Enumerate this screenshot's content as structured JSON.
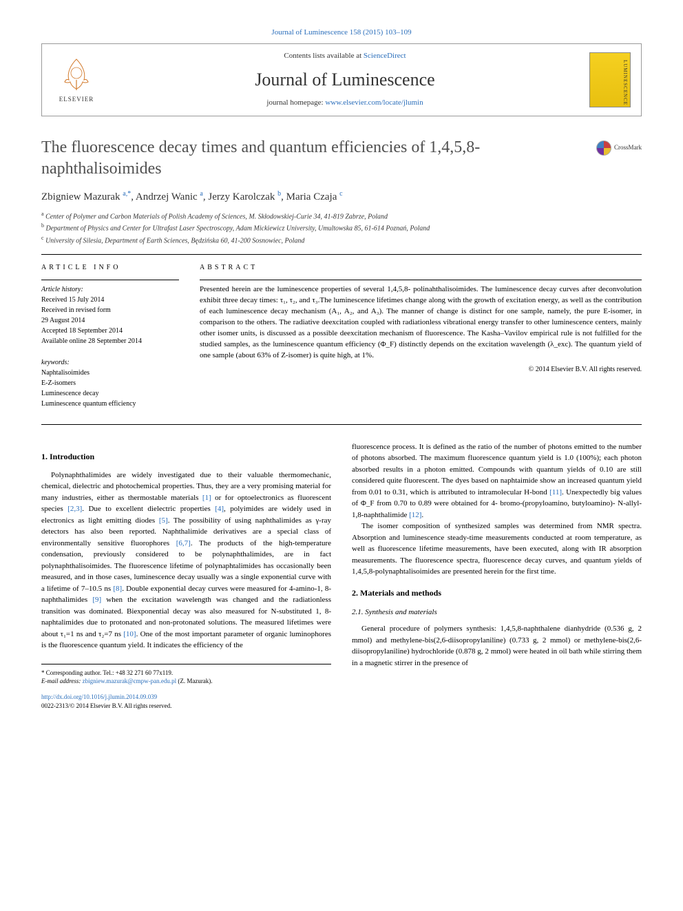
{
  "top_link": "Journal of Luminescence 158 (2015) 103–109",
  "header": {
    "contents_prefix": "Contents lists available at ",
    "contents_link": "ScienceDirect",
    "journal_name": "Journal of Luminescence",
    "homepage_prefix": "journal homepage: ",
    "homepage_link": "www.elsevier.com/locate/jlumin",
    "elsevier_label": "ELSEVIER",
    "cover_text": "LUMINESCENCE"
  },
  "crossmark": "CrossMark",
  "title": "The fluorescence decay times and quantum efficiencies of 1,4,5,8-naphthalisoimides",
  "authors_html": "Zbigniew Mazurak <sup>a,*</sup>, Andrzej Wanic <sup>a</sup>, Jerzy Karolczak <sup>b</sup>, Maria Czaja <sup>c</sup>",
  "affiliations": [
    "a Center of Polymer and Carbon Materials of Polish Academy of Sciences, M. Skłodowskiej-Curie 34, 41-819 Zabrze, Poland",
    "b Department of Physics and Center for Ultrafast Laser Spectroscopy, Adam Mickiewicz University, Umultowska 85, 61-614 Poznań, Poland",
    "c University of Silesia, Department of Earth Sciences, Będzińska 60, 41-200 Sosnowiec, Poland"
  ],
  "info": {
    "heading": "ARTICLE INFO",
    "history_label": "Article history:",
    "history": [
      "Received 15 July 2014",
      "Received in revised form",
      "29 August 2014",
      "Accepted 18 September 2014",
      "Available online 28 September 2014"
    ],
    "keywords_label": "keywords:",
    "keywords": [
      "Naphtalisoimides",
      "E-Z-isomers",
      "Luminescence decay",
      "Luminescence quantum efficiency"
    ]
  },
  "abstract": {
    "heading": "ABSTRACT",
    "text": "Presented herein are the luminescence properties of several 1,4,5,8- polinahthalisoimides. The luminescence decay curves after deconvolution exhibit three decay times: τ₁, τ₂, and τ₃.The luminescence lifetimes change along with the growth of excitation energy, as well as the contribution of each luminescence decay mechanism (A₁, A₂, and A₃). The manner of change is distinct for one sample, namely, the pure E-isomer, in comparison to the others. The radiative deexcitation coupled with radiationless vibrational energy transfer to other luminescence centers, mainly other isomer units, is discussed as a possible deexcitation mechanism of fluorescence. The Kasha–Vavilov empirical rule is not fulfilled for the studied samples, as the luminescence quantum efficiency (Φ_F) distinctly depends on the excitation wavelength (λ_exc). The quantum yield of one sample (about 63% of Z-isomer) is quite high, at 1%.",
    "copyright": "© 2014 Elsevier B.V. All rights reserved."
  },
  "sections": {
    "intro_heading": "1. Introduction",
    "intro_p1": "Polynaphthalimides are widely investigated due to their valuable thermomechanic, chemical, dielectric and photochemical properties. Thus, they are a very promising material for many industries, either as thermostable materials [1] or for optoelectronics as fluorescent species [2,3]. Due to excellent dielectric properties [4], polyimides are widely used in electronics as light emitting diodes [5]. The possibility of using naphthalimides as γ-ray detectors has also been reported. Naphthalimide derivatives are a special class of environmentally sensitive fluorophores [6,7]. The products of the high-temperature condensation, previously considered to be polynaphthalimides, are in fact polynaphthalisoimides. The fluorescence lifetime of polynaphtalimides has occasionally been measured, and in those cases, luminescence decay usually was a single exponential curve with a lifetime of 7–10.5 ns [8]. Double exponential decay curves were measured for 4-amino-1, 8-naphthalimides [9] when the excitation wavelength was changed and the radiationless transition was dominated. Biexponential decay was also measured for N-substituted 1, 8-naphtalimides due to protonated and non-protonated solutions. The measured lifetimes were about τ₁=1 ns and τ₂=7 ns [10]. One of the most important parameter of organic luminophores is the fluorescence quantum yield. It indicates the efficiency of the",
    "col2_p1": "fluorescence process. It is defined as the ratio of the number of photons emitted to the number of photons absorbed. The maximum fluorescence quantum yield is 1.0 (100%); each photon absorbed results in a photon emitted. Compounds with quantum yields of 0.10 are still considered quite fluorescent. The dyes based on naphtaimide show an increased quantum yield from 0.01 to 0.31, which is attributed to intramolecular H-bond [11]. Unexpectedly big values of Φ_F from 0.70 to 0.89 were obtained for 4- bromo-(propyloamino, butyloamino)- N-allyl-1,8-naphthalimide [12].",
    "col2_p2": "The isomer composition of synthesized samples was determined from NMR spectra. Absorption and luminescence steady-time measurements conducted at room temperature, as well as fluorescence lifetime measurements, have been executed, along with IR absorption measurements. The fluorescence spectra, fluorescence decay curves, and quantum yields of 1,4,5,8-polynaphtalisoimides are presented herein for the first time.",
    "methods_heading": "2. Materials and methods",
    "synthesis_heading": "2.1. Synthesis and materials",
    "synthesis_p1": "General procedure of polymers synthesis: 1,4,5,8-naphthalene dianhydride (0.536 g, 2 mmol) and methylene-bis(2,6-diisopropylaniline) (0.733 g, 2 mmol) or methylene-bis(2,6-diisopropylaniline) hydrochloride (0.878 g, 2 mmol) were heated in oil bath while stirring them in a magnetic stirrer in the presence of"
  },
  "footer": {
    "corr": "* Corresponding author. Tel.: +48 32 271 60 77x119.",
    "email_label": "E-mail address: ",
    "email": "zbigniew.mazurak@cmpw-pan.edu.pl",
    "email_suffix": " (Z. Mazurak)."
  },
  "doi": {
    "link": "http://dx.doi.org/10.1016/j.jlumin.2014.09.039",
    "issn": "0022-2313/© 2014 Elsevier B.V. All rights reserved."
  },
  "colors": {
    "link": "#2a6ebb",
    "text": "#000000",
    "title_gray": "#505050"
  }
}
